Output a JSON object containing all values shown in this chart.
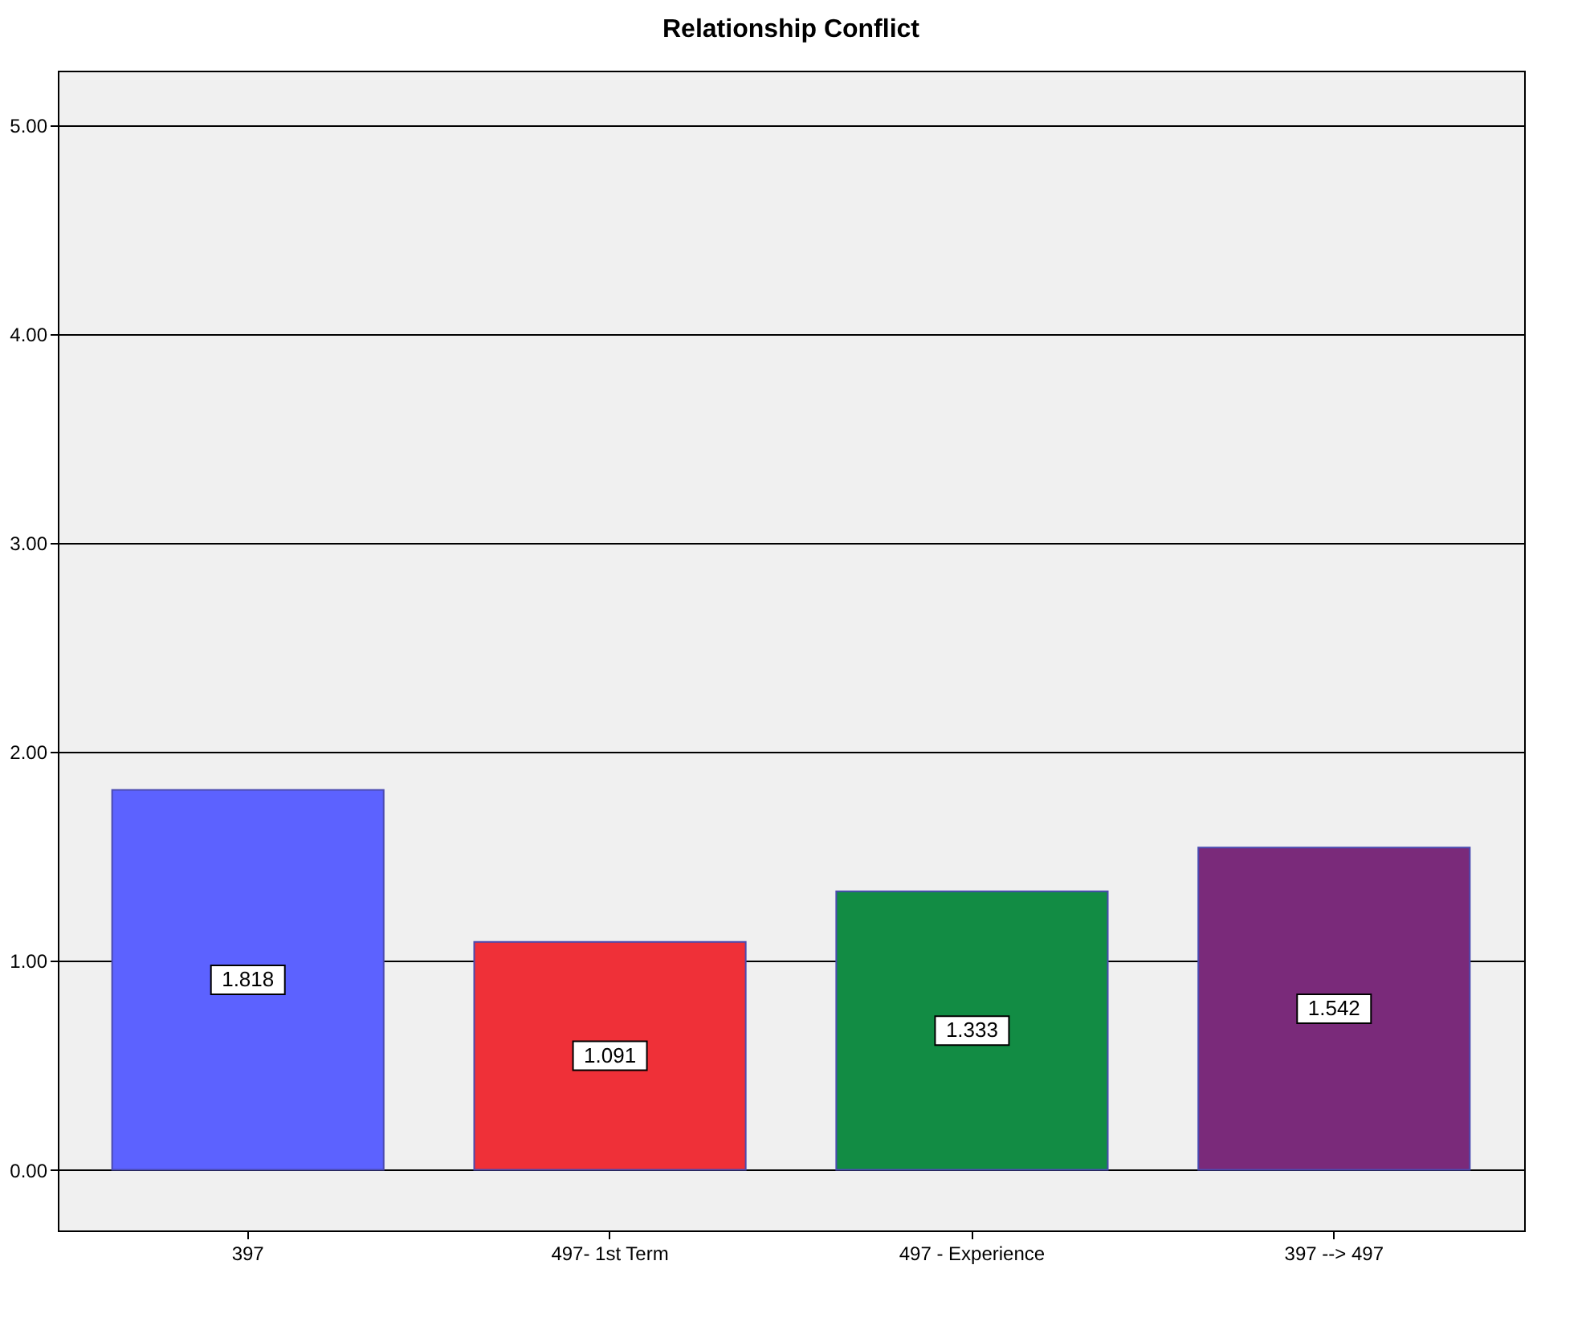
{
  "chart_data": {
    "type": "bar",
    "title": "Relationship Conflict",
    "categories": [
      "397",
      "497- 1st Term",
      "497 - Experience",
      "397 --> 497"
    ],
    "values": [
      1.818,
      1.091,
      1.333,
      1.542
    ],
    "colors": [
      "#5c62ff",
      "#ef3038",
      "#128c44",
      "#7a2a7a"
    ],
    "ylim": [
      -0.29,
      5.26
    ],
    "yticks": [
      {
        "value": 0,
        "label": "0.00"
      },
      {
        "value": 1,
        "label": "1.00"
      },
      {
        "value": 2,
        "label": "2.00"
      },
      {
        "value": 3,
        "label": "3.00"
      },
      {
        "value": 4,
        "label": "4.00"
      },
      {
        "value": 5,
        "label": "5.00"
      }
    ],
    "grid": "y",
    "data_labels": true
  }
}
